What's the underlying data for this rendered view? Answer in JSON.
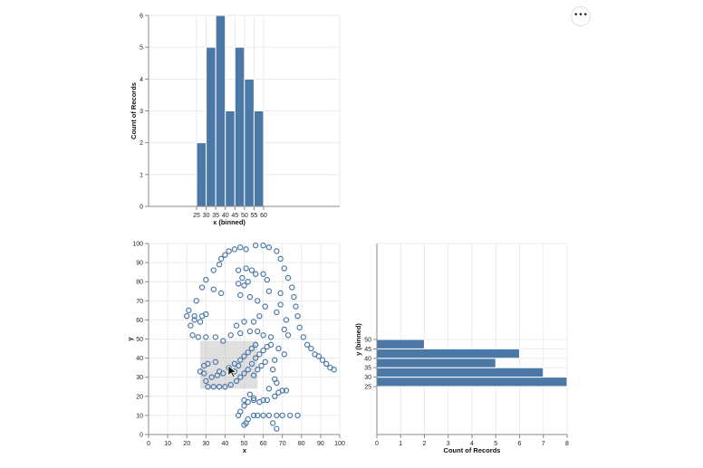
{
  "actions_menu": {
    "icon": "ellipsis-icon",
    "label": "•••"
  },
  "colors": {
    "bar": "#4c78a8",
    "point_stroke": "#4c78a8",
    "brush": "#b7b7b7"
  },
  "chart_data": [
    {
      "id": "x-histogram",
      "type": "bar",
      "xlabel": "x (binned)",
      "ylabel": "Count of Records",
      "bins": [
        [
          25,
          30
        ],
        [
          30,
          35
        ],
        [
          35,
          40
        ],
        [
          40,
          45
        ],
        [
          45,
          50
        ],
        [
          50,
          55
        ],
        [
          55,
          60
        ]
      ],
      "values": [
        2,
        5,
        6,
        3,
        5,
        4,
        3
      ],
      "xticks": [
        "25",
        "30",
        "35",
        "40",
        "45",
        "50",
        "55",
        "60"
      ],
      "yticks": [
        "0",
        "1",
        "2",
        "3",
        "4",
        "5",
        "6"
      ],
      "ylim": [
        0,
        6
      ],
      "grid": true
    },
    {
      "id": "scatter",
      "type": "scatter",
      "xlabel": "x",
      "ylabel": "y",
      "xlim": [
        0,
        100
      ],
      "ylim": [
        0,
        100
      ],
      "xticks": [
        "0",
        "10",
        "20",
        "30",
        "40",
        "50",
        "60",
        "70",
        "80",
        "90",
        "100"
      ],
      "yticks": [
        "0",
        "10",
        "20",
        "30",
        "40",
        "50",
        "60",
        "70",
        "80",
        "90",
        "100"
      ],
      "grid": true,
      "brush_selection": {
        "x": [
          27,
          57
        ],
        "y": [
          24,
          49
        ]
      },
      "points": [
        [
          50,
          5
        ],
        [
          51,
          6
        ],
        [
          52,
          8
        ],
        [
          47,
          10
        ],
        [
          55,
          10
        ],
        [
          57,
          10
        ],
        [
          63,
          10
        ],
        [
          67,
          10
        ],
        [
          70,
          10
        ],
        [
          74,
          10
        ],
        [
          78,
          10
        ],
        [
          60,
          10
        ],
        [
          65,
          6
        ],
        [
          67,
          3
        ],
        [
          48,
          12
        ],
        [
          50,
          15
        ],
        [
          52,
          17
        ],
        [
          55,
          18
        ],
        [
          58,
          17
        ],
        [
          60,
          18
        ],
        [
          62,
          18
        ],
        [
          66,
          20
        ],
        [
          68,
          22
        ],
        [
          70,
          23
        ],
        [
          72,
          23
        ],
        [
          63,
          24
        ],
        [
          50,
          18
        ],
        [
          55,
          19
        ],
        [
          53,
          21
        ],
        [
          27,
          33
        ],
        [
          30,
          28
        ],
        [
          31,
          25
        ],
        [
          34,
          25
        ],
        [
          37,
          25
        ],
        [
          40,
          25
        ],
        [
          43,
          26
        ],
        [
          33,
          30
        ],
        [
          36,
          31
        ],
        [
          39,
          32
        ],
        [
          45,
          33
        ],
        [
          47,
          36
        ],
        [
          48,
          39
        ],
        [
          50,
          41
        ],
        [
          52,
          43
        ],
        [
          54,
          45
        ],
        [
          56,
          47
        ],
        [
          31,
          37
        ],
        [
          29,
          36
        ],
        [
          46,
          28
        ],
        [
          48,
          30
        ],
        [
          50,
          32
        ],
        [
          52,
          34
        ],
        [
          54,
          37
        ],
        [
          56,
          40
        ],
        [
          58,
          42
        ],
        [
          60,
          44
        ],
        [
          62,
          46
        ],
        [
          61,
          38
        ],
        [
          59,
          36
        ],
        [
          57,
          34
        ],
        [
          55,
          31
        ],
        [
          45,
          37
        ],
        [
          42,
          35
        ],
        [
          35,
          38
        ],
        [
          29,
          32
        ],
        [
          37,
          33
        ],
        [
          26,
          51
        ],
        [
          30,
          51
        ],
        [
          35,
          51
        ],
        [
          39,
          49
        ],
        [
          43,
          52
        ],
        [
          48,
          53
        ],
        [
          53,
          54
        ],
        [
          57,
          54
        ],
        [
          60,
          52
        ],
        [
          64,
          51
        ],
        [
          64,
          47
        ],
        [
          68,
          45
        ],
        [
          66,
          39
        ],
        [
          65,
          34
        ],
        [
          66,
          29
        ],
        [
          67,
          27
        ],
        [
          71,
          42
        ],
        [
          73,
          52
        ],
        [
          23,
          52
        ],
        [
          24,
          62
        ],
        [
          25,
          70
        ],
        [
          28,
          77
        ],
        [
          30,
          81
        ],
        [
          34,
          86
        ],
        [
          37,
          89
        ],
        [
          38,
          92
        ],
        [
          40,
          94
        ],
        [
          42,
          96
        ],
        [
          45,
          97
        ],
        [
          48,
          98
        ],
        [
          51,
          97
        ],
        [
          56,
          99
        ],
        [
          60,
          99
        ],
        [
          63,
          98
        ],
        [
          67,
          96
        ],
        [
          69,
          92
        ],
        [
          71,
          87
        ],
        [
          73,
          82
        ],
        [
          75,
          77
        ],
        [
          76,
          72
        ],
        [
          77,
          67
        ],
        [
          78,
          62
        ],
        [
          79,
          56
        ],
        [
          81,
          51
        ],
        [
          83,
          47
        ],
        [
          85,
          45
        ],
        [
          87,
          42
        ],
        [
          89,
          41
        ],
        [
          91,
          39
        ],
        [
          93,
          37
        ],
        [
          95,
          35
        ],
        [
          97,
          34
        ],
        [
          47,
          86
        ],
        [
          51,
          87
        ],
        [
          54,
          86
        ],
        [
          56,
          84
        ],
        [
          49,
          82
        ],
        [
          52,
          80
        ],
        [
          47,
          79
        ],
        [
          50,
          78
        ],
        [
          21,
          65
        ],
        [
          22,
          57
        ],
        [
          20,
          62
        ],
        [
          24,
          60
        ],
        [
          28,
          62
        ],
        [
          27,
          59
        ],
        [
          30,
          63
        ],
        [
          34,
          76
        ],
        [
          38,
          74
        ],
        [
          60,
          84
        ],
        [
          62,
          81
        ],
        [
          63,
          75
        ],
        [
          69,
          74
        ],
        [
          72,
          60
        ],
        [
          71,
          55
        ],
        [
          58,
          62
        ],
        [
          55,
          59
        ],
        [
          50,
          59
        ],
        [
          46,
          57
        ],
        [
          48,
          73
        ],
        [
          53,
          72
        ],
        [
          57,
          70
        ],
        [
          61,
          67
        ],
        [
          67,
          64
        ],
        [
          69,
          68
        ]
      ]
    },
    {
      "id": "y-histogram",
      "type": "bar",
      "orientation": "horizontal",
      "xlabel": "Count of Records",
      "ylabel": "y (binned)",
      "bins": [
        [
          25,
          30
        ],
        [
          30,
          35
        ],
        [
          35,
          40
        ],
        [
          40,
          45
        ],
        [
          45,
          50
        ]
      ],
      "values": [
        8,
        7,
        5,
        6,
        2
      ],
      "xticks": [
        "0",
        "1",
        "2",
        "3",
        "4",
        "5",
        "6",
        "7",
        "8"
      ],
      "yticks": [
        "25",
        "30",
        "35",
        "40",
        "45",
        "50"
      ],
      "xlim": [
        0,
        8
      ],
      "grid": true
    }
  ]
}
